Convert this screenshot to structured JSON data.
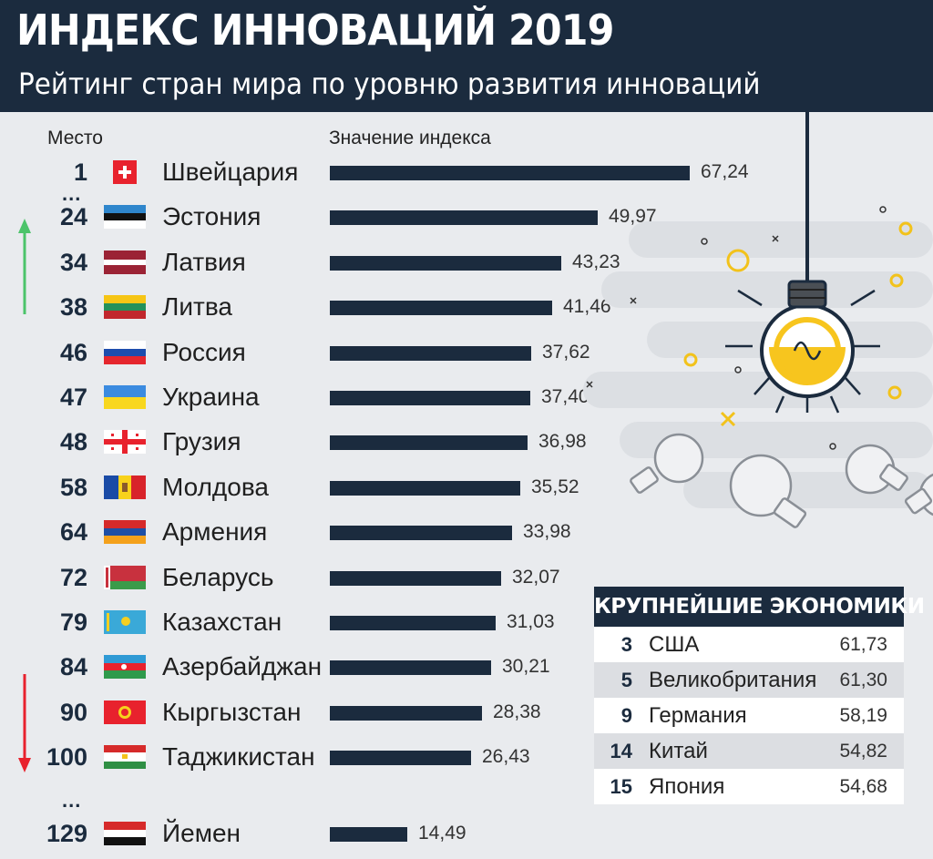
{
  "header": {
    "title": "ИНДЕКС ИННОВАЦИЙ 2019",
    "subtitle": "Рейтинг стран мира по уровню развития инноваций"
  },
  "columns": {
    "rank": "Место",
    "value": "Значение индекса"
  },
  "ellipsis": "...",
  "colors": {
    "bar": "#1b2b3e",
    "up_arrow": "#4cc46a",
    "down_arrow": "#e8222d"
  },
  "chart_data": {
    "type": "bar",
    "orientation": "horizontal",
    "categories": [
      "Швейцария",
      "Эстония",
      "Латвия",
      "Литва",
      "Россия",
      "Украина",
      "Грузия",
      "Молдова",
      "Армения",
      "Беларусь",
      "Казахстан",
      "Азербайджан",
      "Кыргызстан",
      "Таджикистан",
      "Йемен"
    ],
    "ranks": [
      "1",
      "24",
      "34",
      "38",
      "46",
      "47",
      "48",
      "58",
      "64",
      "72",
      "79",
      "84",
      "90",
      "100",
      "129"
    ],
    "values": [
      67.24,
      49.97,
      43.23,
      41.46,
      37.62,
      37.4,
      36.98,
      35.52,
      33.98,
      32.07,
      31.03,
      30.21,
      28.38,
      26.43,
      14.49
    ],
    "value_labels": [
      "67,24",
      "49,97",
      "43,23",
      "41,46",
      "37,62",
      "37,40",
      "36,98",
      "35,52",
      "33,98",
      "32,07",
      "31,03",
      "30,21",
      "28,38",
      "26,43",
      "14,49"
    ],
    "flags": [
      "flag-switzerland",
      "flag-estonia",
      "flag-latvia",
      "flag-lithuania",
      "flag-russia",
      "flag-ukraine",
      "flag-georgia",
      "flag-moldova",
      "flag-armenia",
      "flag-belarus",
      "flag-kazakhstan",
      "flag-azerbaijan",
      "flag-kyrgyzstan",
      "flag-tajikistan",
      "flag-yemen"
    ]
  },
  "largest_economies": {
    "title": "КРУПНЕЙШИЕ ЭКОНОМИКИ",
    "rows": [
      {
        "rank": "3",
        "country": "США",
        "value": "61,73"
      },
      {
        "rank": "5",
        "country": "Великобритания",
        "value": "61,30"
      },
      {
        "rank": "9",
        "country": "Германия",
        "value": "58,19"
      },
      {
        "rank": "14",
        "country": "Китай",
        "value": "54,82"
      },
      {
        "rank": "15",
        "country": "Япония",
        "value": "54,68"
      }
    ]
  }
}
